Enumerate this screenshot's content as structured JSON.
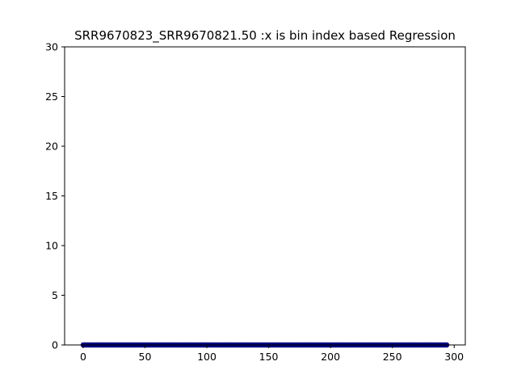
{
  "chart_data": {
    "type": "scatter",
    "title": "SRR9670823_SRR9670821.50 :x is bin index based Regression",
    "xlabel": "",
    "ylabel": "",
    "xlim": [
      -15,
      309
    ],
    "ylim": [
      0,
      30
    ],
    "x_ticks": [
      0,
      50,
      100,
      150,
      200,
      250,
      300
    ],
    "y_ticks": [
      0,
      5,
      10,
      15,
      20,
      25,
      30
    ],
    "grid": false,
    "legend": "none",
    "point_color": "#00007f",
    "series": [
      {
        "x_start": 0,
        "x_end": 294,
        "x_step": 1,
        "y": 0
      }
    ]
  }
}
